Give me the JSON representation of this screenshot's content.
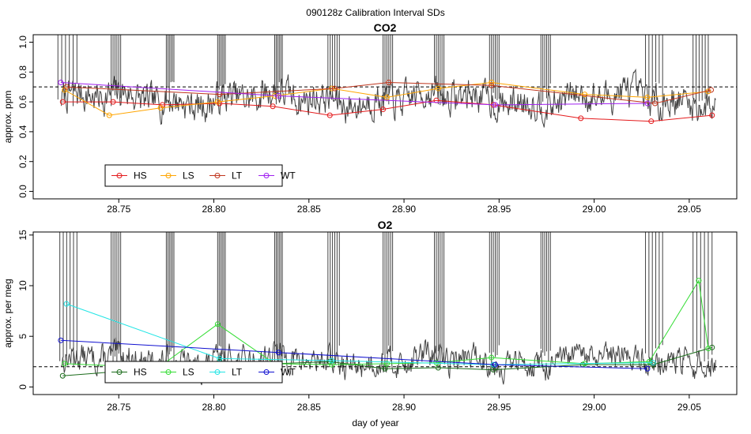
{
  "figure": {
    "suptitle": "090128z   Calibration Interval SDs",
    "xlabel": "day of year"
  },
  "colors": {
    "HS_top": "#e41a1c",
    "LS_top": "#ffa500",
    "LT_top": "#c0361e",
    "WT_top": "#a020f0",
    "HS_bottom": "#1a6b1a",
    "LS_bottom": "#33dd33",
    "LT_bottom": "#22e5e5",
    "WT_bottom": "#1010d0",
    "trace": "#444444"
  },
  "chart_data": [
    {
      "type": "line",
      "title": "CO2",
      "xlabel": "",
      "ylabel": "approx. ppm",
      "xlim": [
        28.705,
        29.075
      ],
      "ylim": [
        -0.05,
        1.05
      ],
      "xticks": [
        28.75,
        28.8,
        28.85,
        28.9,
        28.95,
        29.0,
        29.05
      ],
      "xtick_labels": [
        "28.75",
        "28.80",
        "28.85",
        "28.90",
        "28.95",
        "29.00",
        "29.05"
      ],
      "yticks": [
        0.0,
        0.2,
        0.4,
        0.6,
        0.8,
        1.0
      ],
      "ytick_labels": [
        "0.0",
        "0.2",
        "0.4",
        "0.6",
        "0.8",
        "1.0"
      ],
      "reference_line": 0.7,
      "legend_position": "bottom-left",
      "legend": [
        "HS",
        "LS",
        "LT",
        "WT"
      ],
      "trace": {
        "base": 0.62,
        "amplitude": 0.09,
        "seed": 7
      },
      "spike_bursts": [
        [
          28.718,
          28.728
        ],
        [
          28.746,
          28.751
        ],
        [
          28.775,
          28.779
        ],
        [
          28.802,
          28.806
        ],
        [
          28.832,
          28.836
        ],
        [
          28.86,
          28.866
        ],
        [
          28.889,
          28.894
        ],
        [
          28.916,
          28.921
        ],
        [
          28.945,
          28.95
        ],
        [
          28.972,
          28.977
        ],
        [
          29.027,
          29.036
        ],
        [
          29.052,
          29.06
        ]
      ],
      "series": [
        {
          "name": "HS",
          "color_key": "HS_top",
          "x": [
            28.7205,
            28.747,
            28.773,
            28.803,
            28.831,
            28.861,
            28.889,
            28.917,
            28.947,
            28.993,
            29.03,
            29.062
          ],
          "y": [
            0.6,
            0.6,
            0.58,
            0.59,
            0.57,
            0.51,
            0.55,
            0.61,
            0.58,
            0.49,
            0.47,
            0.51
          ]
        },
        {
          "name": "LS",
          "color_key": "LS_top",
          "x": [
            28.7215,
            28.745,
            28.772,
            28.802,
            28.832,
            28.862,
            28.891,
            28.918,
            28.946,
            28.995,
            29.028,
            29.06
          ],
          "y": [
            0.68,
            0.51,
            0.56,
            0.6,
            0.64,
            0.69,
            0.63,
            0.69,
            0.73,
            0.65,
            0.63,
            0.67
          ]
        },
        {
          "name": "LT",
          "color_key": "LT_top",
          "x": [
            28.7225,
            28.803,
            28.8635,
            28.892,
            28.946,
            29.032,
            29.0615
          ],
          "y": [
            0.7,
            0.65,
            0.69,
            0.73,
            0.71,
            0.59,
            0.68
          ]
        },
        {
          "name": "WT",
          "color_key": "WT_top",
          "x": [
            28.7195,
            28.834,
            28.948,
            29.028
          ],
          "y": [
            0.73,
            0.64,
            0.58,
            0.59
          ]
        }
      ]
    },
    {
      "type": "line",
      "title": "O2",
      "xlabel": "day of year",
      "ylabel": "approx. per meg",
      "xlim": [
        28.705,
        29.075
      ],
      "ylim": [
        -0.75,
        15.3
      ],
      "xticks": [
        28.75,
        28.8,
        28.85,
        28.9,
        28.95,
        29.0,
        29.05
      ],
      "xtick_labels": [
        "28.75",
        "28.80",
        "28.85",
        "28.90",
        "28.95",
        "29.00",
        "29.05"
      ],
      "yticks": [
        0,
        5,
        10,
        15
      ],
      "ytick_labels": [
        "0",
        "5",
        "10",
        "15"
      ],
      "reference_line": 2.0,
      "legend_position": "bottom-left",
      "legend": [
        "HS",
        "LS",
        "LT",
        "WT"
      ],
      "trace": {
        "base": 2.6,
        "amplitude": 1.1,
        "seed": 13
      },
      "spike_bursts": [
        [
          28.719,
          28.728
        ],
        [
          28.746,
          28.751
        ],
        [
          28.775,
          28.779
        ],
        [
          28.802,
          28.806
        ],
        [
          28.832,
          28.836
        ],
        [
          28.86,
          28.866
        ],
        [
          28.889,
          28.894
        ],
        [
          28.916,
          28.921
        ],
        [
          28.945,
          28.95
        ],
        [
          28.972,
          28.977
        ],
        [
          29.027,
          29.036
        ],
        [
          29.052,
          29.062
        ]
      ],
      "series": [
        {
          "name": "HS",
          "color_key": "HS_bottom",
          "x": [
            28.7205,
            28.748,
            28.775,
            28.803,
            28.833,
            28.861,
            28.89,
            28.918,
            28.947,
            28.994,
            29.031,
            29.062
          ],
          "y": [
            1.1,
            1.5,
            2.0,
            2.5,
            2.3,
            2.5,
            1.8,
            1.9,
            1.7,
            2.2,
            2.2,
            3.9
          ]
        },
        {
          "name": "LS",
          "color_key": "LS_bottom",
          "x": [
            28.7215,
            28.746,
            28.773,
            28.802,
            28.832,
            28.862,
            28.891,
            28.917,
            28.946,
            28.995,
            29.029,
            29.055,
            29.06
          ],
          "y": [
            2.3,
            2.1,
            2.2,
            6.2,
            2.3,
            2.2,
            2.3,
            2.4,
            2.9,
            2.3,
            2.5,
            10.5,
            3.8
          ]
        },
        {
          "name": "LT",
          "color_key": "LT_bottom",
          "x": [
            28.7225,
            28.803,
            28.862,
            28.947,
            29.031
          ],
          "y": [
            8.2,
            2.8,
            2.6,
            2.2,
            2.4
          ]
        },
        {
          "name": "WT",
          "color_key": "WT_bottom",
          "x": [
            28.7195,
            28.834,
            28.948,
            29.028
          ],
          "y": [
            4.6,
            3.4,
            2.2,
            1.8
          ]
        }
      ]
    }
  ]
}
